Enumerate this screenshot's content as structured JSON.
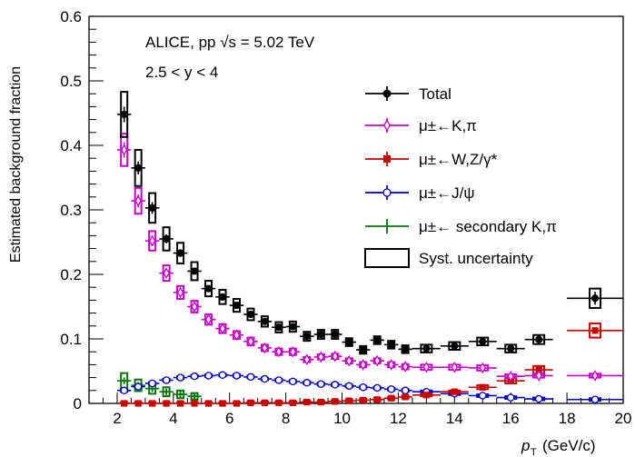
{
  "chart_data": {
    "type": "scatter",
    "annotation_lines": [
      "ALICE, pp √s = 5.02 TeV",
      "2.5 < y < 4"
    ],
    "xlabel": "p_T (GeV/c)",
    "xlabel_main": "p",
    "xlabel_sub": "T",
    "xlabel_unit": "(GeV/c)",
    "ylabel": "Estimated background fraction",
    "xlim": [
      1,
      20
    ],
    "ylim": [
      0,
      0.6
    ],
    "xticks": [
      2,
      4,
      6,
      8,
      10,
      12,
      14,
      16,
      18,
      20
    ],
    "yticks": [
      0,
      0.1,
      0.2,
      0.3,
      0.4,
      0.5,
      0.6
    ],
    "ytick_labels": [
      "0",
      "0.1",
      "0.2",
      "0.3",
      "0.4",
      "0.5",
      "0.6"
    ],
    "legend_position": "right",
    "legend": [
      {
        "label": "Total",
        "color": "#000000",
        "marker": "circle"
      },
      {
        "label": "μ±←K,π",
        "color": "#cc00cc",
        "marker": "open-diamond"
      },
      {
        "label": "μ±←W,Z/γ*",
        "color": "#cc0000",
        "marker": "square"
      },
      {
        "label": "μ±←J/ψ",
        "color": "#0000cc",
        "marker": "open-circle"
      },
      {
        "label": "μ±← secondary K,π",
        "color": "#007700",
        "marker": "plus"
      },
      {
        "label": "Syst. uncertainty",
        "color": "#000000",
        "marker": "box"
      }
    ],
    "series": [
      {
        "name": "Total",
        "color": "#000000",
        "marker": "circle",
        "x": [
          2.25,
          2.75,
          3.25,
          3.75,
          4.25,
          4.75,
          5.25,
          5.75,
          6.25,
          6.75,
          7.25,
          7.75,
          8.25,
          8.75,
          9.25,
          9.75,
          10.25,
          10.75,
          11.25,
          11.75,
          12.25,
          13.0,
          14.0,
          15.0,
          16.0,
          17.0,
          19.0
        ],
        "x_halfwidth": [
          0.25,
          0.25,
          0.25,
          0.25,
          0.25,
          0.25,
          0.25,
          0.25,
          0.25,
          0.25,
          0.25,
          0.25,
          0.25,
          0.25,
          0.25,
          0.25,
          0.25,
          0.25,
          0.25,
          0.25,
          0.25,
          0.5,
          0.5,
          0.5,
          0.5,
          0.5,
          1.0
        ],
        "y": [
          0.448,
          0.365,
          0.303,
          0.255,
          0.233,
          0.205,
          0.178,
          0.165,
          0.152,
          0.138,
          0.127,
          0.118,
          0.119,
          0.104,
          0.107,
          0.107,
          0.095,
          0.083,
          0.098,
          0.091,
          0.084,
          0.085,
          0.089,
          0.096,
          0.085,
          0.099,
          0.163
        ],
        "syst": [
          0.035,
          0.028,
          0.023,
          0.018,
          0.016,
          0.014,
          0.012,
          0.011,
          0.01,
          0.009,
          0.008,
          0.008,
          0.008,
          0.007,
          0.007,
          0.007,
          0.006,
          0.006,
          0.006,
          0.006,
          0.006,
          0.006,
          0.006,
          0.006,
          0.006,
          0.007,
          0.015
        ],
        "stat": [
          0.012,
          0.01,
          0.009,
          0.007,
          0.006,
          0.005,
          0.005,
          0.005,
          0.004,
          0.004,
          0.004,
          0.004,
          0.004,
          0.004,
          0.004,
          0.004,
          0.004,
          0.004,
          0.004,
          0.004,
          0.004,
          0.004,
          0.004,
          0.005,
          0.005,
          0.006,
          0.01
        ]
      },
      {
        "name": "μ±←K,π",
        "color": "#cc00cc",
        "marker": "open-diamond",
        "x": [
          2.25,
          2.75,
          3.25,
          3.75,
          4.25,
          4.75,
          5.25,
          5.75,
          6.25,
          6.75,
          7.25,
          7.75,
          8.25,
          8.75,
          9.25,
          9.75,
          10.25,
          10.75,
          11.25,
          11.75,
          12.25,
          13.0,
          14.0,
          15.0,
          16.0,
          17.0,
          19.0
        ],
        "x_halfwidth": [
          0.25,
          0.25,
          0.25,
          0.25,
          0.25,
          0.25,
          0.25,
          0.25,
          0.25,
          0.25,
          0.25,
          0.25,
          0.25,
          0.25,
          0.25,
          0.25,
          0.25,
          0.25,
          0.25,
          0.25,
          0.25,
          0.5,
          0.5,
          0.5,
          0.5,
          0.5,
          1.0
        ],
        "y": [
          0.393,
          0.314,
          0.252,
          0.202,
          0.172,
          0.15,
          0.13,
          0.116,
          0.106,
          0.096,
          0.086,
          0.08,
          0.08,
          0.068,
          0.072,
          0.073,
          0.066,
          0.06,
          0.066,
          0.06,
          0.057,
          0.056,
          0.056,
          0.055,
          0.042,
          0.043,
          0.043
        ],
        "syst": [
          0.025,
          0.02,
          0.015,
          0.012,
          0.01,
          0.009,
          0.008,
          0.007,
          0.006,
          0.006,
          0.005,
          0.005,
          0.005,
          0.004,
          0.004,
          0.004,
          0.004,
          0.004,
          0.004,
          0.004,
          0.004,
          0.004,
          0.004,
          0.004,
          0.003,
          0.003,
          0.003
        ],
        "stat": [
          0.012,
          0.01,
          0.008,
          0.006,
          0.005,
          0.004,
          0.004,
          0.003,
          0.003,
          0.003,
          0.003,
          0.003,
          0.003,
          0.003,
          0.003,
          0.003,
          0.003,
          0.003,
          0.003,
          0.003,
          0.003,
          0.003,
          0.003,
          0.003,
          0.003,
          0.003,
          0.003
        ]
      },
      {
        "name": "μ±←W,Z/γ*",
        "color": "#cc0000",
        "marker": "square",
        "x": [
          2.25,
          2.75,
          3.25,
          3.75,
          4.25,
          4.75,
          5.25,
          5.75,
          6.25,
          6.75,
          7.25,
          7.75,
          8.25,
          8.75,
          9.25,
          9.75,
          10.25,
          10.75,
          11.25,
          11.75,
          12.25,
          13.0,
          14.0,
          15.0,
          16.0,
          17.0,
          19.0
        ],
        "x_halfwidth": [
          0.25,
          0.25,
          0.25,
          0.25,
          0.25,
          0.25,
          0.25,
          0.25,
          0.25,
          0.25,
          0.25,
          0.25,
          0.25,
          0.25,
          0.25,
          0.25,
          0.25,
          0.25,
          0.25,
          0.25,
          0.25,
          0.5,
          0.5,
          0.5,
          0.5,
          0.5,
          1.0
        ],
        "y": [
          0.0,
          0.0,
          0.0,
          0.0,
          0.0,
          0.0,
          0.0,
          0.0,
          0.0,
          0.001,
          0.001,
          0.001,
          0.001,
          0.002,
          0.002,
          0.003,
          0.004,
          0.005,
          0.006,
          0.008,
          0.01,
          0.013,
          0.018,
          0.025,
          0.035,
          0.052,
          0.113
        ],
        "syst": [
          0.002,
          0.002,
          0.002,
          0.002,
          0.002,
          0.002,
          0.002,
          0.002,
          0.002,
          0.002,
          0.002,
          0.002,
          0.002,
          0.002,
          0.002,
          0.002,
          0.002,
          0.002,
          0.002,
          0.002,
          0.002,
          0.002,
          0.002,
          0.003,
          0.004,
          0.006,
          0.011
        ],
        "stat": [
          0,
          0,
          0,
          0,
          0,
          0,
          0,
          0,
          0,
          0,
          0,
          0,
          0,
          0,
          0,
          0,
          0,
          0,
          0,
          0,
          0,
          0,
          0,
          0,
          0,
          0,
          0
        ]
      },
      {
        "name": "μ±←J/ψ",
        "color": "#0000cc",
        "marker": "open-circle",
        "x": [
          2.25,
          2.75,
          3.25,
          3.75,
          4.25,
          4.75,
          5.25,
          5.75,
          6.25,
          6.75,
          7.25,
          7.75,
          8.25,
          8.75,
          9.25,
          9.75,
          10.25,
          10.75,
          11.25,
          11.75,
          12.25,
          13.0,
          14.0,
          15.0,
          16.0,
          17.0,
          19.0
        ],
        "x_halfwidth": [
          0.25,
          0.25,
          0.25,
          0.25,
          0.25,
          0.25,
          0.25,
          0.25,
          0.25,
          0.25,
          0.25,
          0.25,
          0.25,
          0.25,
          0.25,
          0.25,
          0.25,
          0.25,
          0.25,
          0.25,
          0.25,
          0.5,
          0.5,
          0.5,
          0.5,
          0.5,
          1.0
        ],
        "y": [
          0.02,
          0.026,
          0.031,
          0.036,
          0.04,
          0.042,
          0.043,
          0.044,
          0.043,
          0.041,
          0.038,
          0.036,
          0.034,
          0.032,
          0.03,
          0.029,
          0.027,
          0.025,
          0.024,
          0.022,
          0.02,
          0.018,
          0.015,
          0.012,
          0.009,
          0.007,
          0.006
        ],
        "syst": [
          0.002,
          0.002,
          0.002,
          0.002,
          0.002,
          0.002,
          0.002,
          0.002,
          0.002,
          0.002,
          0.002,
          0.002,
          0.002,
          0.002,
          0.002,
          0.002,
          0.002,
          0.002,
          0.002,
          0.002,
          0.002,
          0.002,
          0.002,
          0.002,
          0.002,
          0.002,
          0.002
        ],
        "stat": [
          0,
          0,
          0,
          0,
          0,
          0,
          0,
          0,
          0,
          0,
          0,
          0,
          0,
          0,
          0,
          0,
          0,
          0,
          0,
          0,
          0,
          0,
          0,
          0,
          0,
          0,
          0
        ]
      },
      {
        "name": "μ±← secondary K,π",
        "color": "#007700",
        "marker": "plus",
        "x": [
          2.25,
          2.75,
          3.25,
          3.75,
          4.25,
          4.75
        ],
        "x_halfwidth": [
          0.25,
          0.25,
          0.25,
          0.25,
          0.25,
          0.25
        ],
        "y": [
          0.035,
          0.028,
          0.023,
          0.018,
          0.014,
          0.011
        ],
        "syst": [
          0.012,
          0.009,
          0.008,
          0.007,
          0.006,
          0.005
        ],
        "stat": [
          0.003,
          0.002,
          0.002,
          0.002,
          0.002,
          0.002
        ]
      }
    ]
  }
}
